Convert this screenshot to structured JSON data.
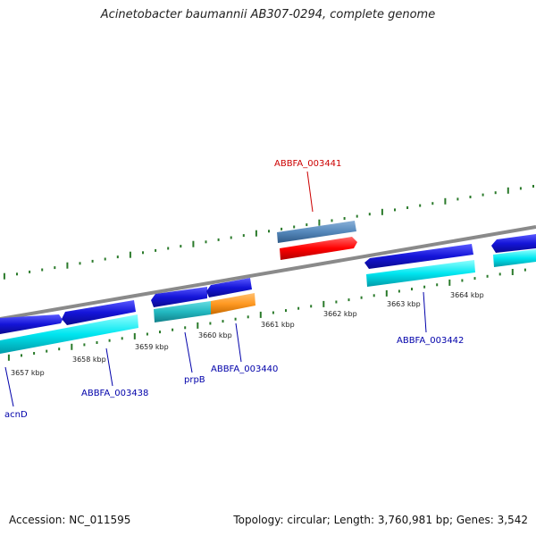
{
  "title": "Acinetobacter baumannii AB307-0294, complete genome",
  "footer": {
    "accession": "Accession: NC_011595",
    "summary": "Topology: circular; Length: 3,760,981 bp; Genes: 3,542"
  },
  "colors": {
    "backbone": "#888888",
    "tick": "#2a7a2a",
    "gene_dark": "#1414d8",
    "gene_light": "#00e0ee",
    "highlight_red": "#ff0000",
    "highlight_steel": "#5588bb",
    "teal": "#22b8c0",
    "orange": "#ff9922",
    "label_blue": "#0000aa",
    "label_red": "#cc0000"
  },
  "scale": {
    "unit": "kbp",
    "labels": [
      "3657 kbp",
      "3658 kbp",
      "3659 kbp",
      "3660 kbp",
      "3661 kbp",
      "3662 kbp",
      "3663 kbp",
      "3664 kbp"
    ]
  },
  "genes": [
    {
      "label": "acnD",
      "color": "label_blue"
    },
    {
      "label": "ABBFA_003438",
      "color": "label_blue"
    },
    {
      "label": "prpB",
      "color": "label_blue"
    },
    {
      "label": "ABBFA_003440",
      "color": "label_blue"
    },
    {
      "label": "ABBFA_003441",
      "color": "label_red"
    },
    {
      "label": "ABBFA_003442",
      "color": "label_blue"
    }
  ]
}
